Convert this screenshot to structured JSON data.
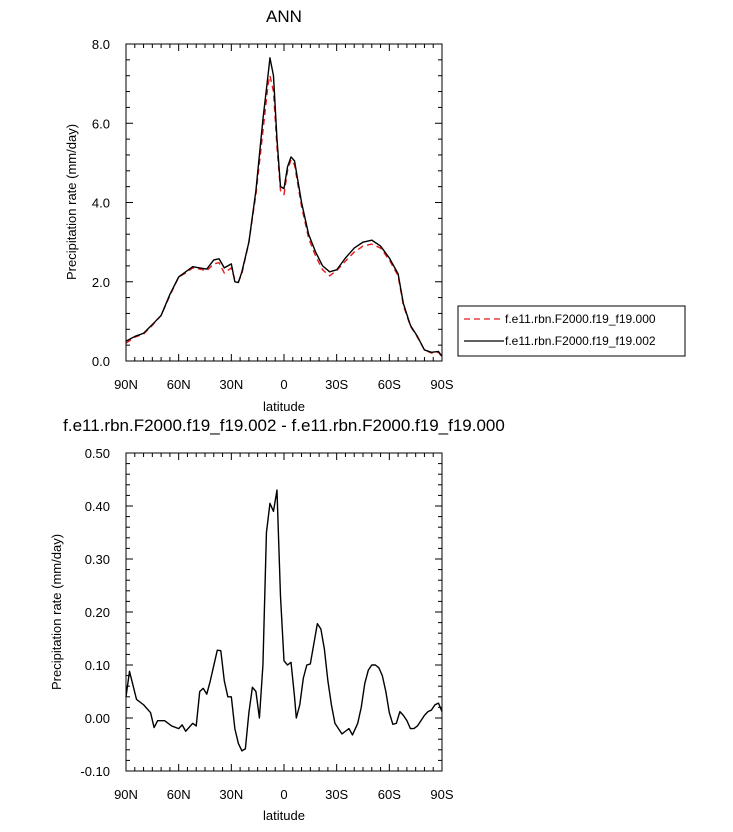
{
  "chart_data": [
    {
      "type": "line",
      "title": "ANN",
      "xlabel": "latitude",
      "ylabel": "Precipitation rate (mm/day)",
      "xlim": [
        90,
        -90
      ],
      "ylim": [
        0,
        8
      ],
      "x_ticks": [
        90,
        60,
        30,
        0,
        -30,
        -60,
        -90
      ],
      "x_tick_labels": [
        "90N",
        "60N",
        "30N",
        "0",
        "30S",
        "60S",
        "90S"
      ],
      "y_ticks": [
        0,
        2,
        4,
        6,
        8
      ],
      "y_tick_labels": [
        "0.0",
        "2.0",
        "4.0",
        "6.0",
        "8.0"
      ],
      "grid": false,
      "legend": "right",
      "series": [
        {
          "name": "f.e11.rbn.F2000.f19_f19.000",
          "color": "#e41a1c",
          "style": "dashed",
          "points": [
            [
              90,
              0.45
            ],
            [
              85,
              0.6
            ],
            [
              80,
              0.68
            ],
            [
              75,
              0.9
            ],
            [
              70,
              1.15
            ],
            [
              65,
              1.65
            ],
            [
              60,
              2.12
            ],
            [
              56,
              2.22
            ],
            [
              52,
              2.35
            ],
            [
              48,
              2.32
            ],
            [
              44,
              2.28
            ],
            [
              40,
              2.45
            ],
            [
              37,
              2.48
            ],
            [
              34,
              2.22
            ],
            [
              30,
              2.35
            ],
            [
              28,
              2.05
            ],
            [
              26,
              2.0
            ],
            [
              24,
              2.2
            ],
            [
              20,
              3.0
            ],
            [
              16,
              4.2
            ],
            [
              12,
              5.8
            ],
            [
              9,
              7.0
            ],
            [
              8,
              7.2
            ],
            [
              6,
              6.8
            ],
            [
              4,
              5.4
            ],
            [
              2,
              4.3
            ],
            [
              0,
              4.2
            ],
            [
              -2,
              4.8
            ],
            [
              -4,
              5.08
            ],
            [
              -6,
              4.95
            ],
            [
              -10,
              3.9
            ],
            [
              -14,
              3.1
            ],
            [
              -18,
              2.65
            ],
            [
              -22,
              2.3
            ],
            [
              -26,
              2.15
            ],
            [
              -30,
              2.28
            ],
            [
              -35,
              2.52
            ],
            [
              -40,
              2.75
            ],
            [
              -45,
              2.9
            ],
            [
              -50,
              2.95
            ],
            [
              -55,
              2.85
            ],
            [
              -60,
              2.55
            ],
            [
              -65,
              2.15
            ],
            [
              -68,
              1.4
            ],
            [
              -72,
              0.88
            ],
            [
              -76,
              0.6
            ],
            [
              -80,
              0.28
            ],
            [
              -84,
              0.2
            ],
            [
              -88,
              0.22
            ],
            [
              -90,
              0.1
            ]
          ]
        },
        {
          "name": "f.e11.rbn.F2000.f19_f19.002",
          "color": "#000000",
          "style": "solid",
          "points": [
            [
              90,
              0.5
            ],
            [
              85,
              0.62
            ],
            [
              80,
              0.7
            ],
            [
              75,
              0.92
            ],
            [
              70,
              1.15
            ],
            [
              65,
              1.68
            ],
            [
              60,
              2.12
            ],
            [
              56,
              2.25
            ],
            [
              52,
              2.38
            ],
            [
              48,
              2.35
            ],
            [
              44,
              2.32
            ],
            [
              40,
              2.55
            ],
            [
              37,
              2.58
            ],
            [
              34,
              2.35
            ],
            [
              30,
              2.45
            ],
            [
              28,
              2.0
            ],
            [
              26,
              1.98
            ],
            [
              24,
              2.25
            ],
            [
              20,
              3.0
            ],
            [
              16,
              4.3
            ],
            [
              12,
              6.1
            ],
            [
              9,
              7.25
            ],
            [
              8,
              7.65
            ],
            [
              6,
              7.2
            ],
            [
              4,
              5.6
            ],
            [
              2,
              4.4
            ],
            [
              0,
              4.35
            ],
            [
              -2,
              4.9
            ],
            [
              -4,
              5.15
            ],
            [
              -6,
              5.05
            ],
            [
              -10,
              4.0
            ],
            [
              -14,
              3.2
            ],
            [
              -18,
              2.75
            ],
            [
              -22,
              2.4
            ],
            [
              -26,
              2.25
            ],
            [
              -30,
              2.3
            ],
            [
              -35,
              2.6
            ],
            [
              -40,
              2.85
            ],
            [
              -45,
              3.0
            ],
            [
              -50,
              3.05
            ],
            [
              -55,
              2.9
            ],
            [
              -60,
              2.6
            ],
            [
              -65,
              2.2
            ],
            [
              -68,
              1.45
            ],
            [
              -72,
              0.9
            ],
            [
              -76,
              0.62
            ],
            [
              -80,
              0.28
            ],
            [
              -84,
              0.22
            ],
            [
              -88,
              0.24
            ],
            [
              -90,
              0.12
            ]
          ]
        }
      ]
    },
    {
      "type": "line",
      "title": "f.e11.rbn.F2000.f19_f19.002 - f.e11.rbn.F2000.f19_f19.000",
      "xlabel": "latitude",
      "ylabel": "Precipitation rate (mm/day)",
      "xlim": [
        90,
        -90
      ],
      "ylim": [
        -0.1,
        0.5
      ],
      "x_ticks": [
        90,
        60,
        30,
        0,
        -30,
        -60,
        -90
      ],
      "x_tick_labels": [
        "90N",
        "60N",
        "30N",
        "0",
        "30S",
        "60S",
        "90S"
      ],
      "y_ticks": [
        -0.1,
        0,
        0.1,
        0.2,
        0.3,
        0.4,
        0.5
      ],
      "y_tick_labels": [
        "-0.10",
        "0.00",
        "0.10",
        "0.20",
        "0.30",
        "0.40",
        "0.50"
      ],
      "grid": false,
      "series": [
        {
          "color": "#000000",
          "style": "solid",
          "points": [
            [
              90,
              0.04
            ],
            [
              88,
              0.088
            ],
            [
              84,
              0.035
            ],
            [
              80,
              0.025
            ],
            [
              76,
              0.01
            ],
            [
              74,
              -0.018
            ],
            [
              72,
              -0.005
            ],
            [
              68,
              -0.005
            ],
            [
              64,
              -0.015
            ],
            [
              60,
              -0.02
            ],
            [
              58,
              -0.013
            ],
            [
              56,
              -0.025
            ],
            [
              52,
              -0.01
            ],
            [
              50,
              -0.015
            ],
            [
              48,
              0.05
            ],
            [
              46,
              0.056
            ],
            [
              44,
              0.045
            ],
            [
              42,
              0.07
            ],
            [
              38,
              0.128
            ],
            [
              36,
              0.127
            ],
            [
              34,
              0.07
            ],
            [
              32,
              0.04
            ],
            [
              30,
              0.04
            ],
            [
              28,
              -0.02
            ],
            [
              26,
              -0.048
            ],
            [
              24,
              -0.062
            ],
            [
              22,
              -0.058
            ],
            [
              20,
              0.01
            ],
            [
              18,
              0.058
            ],
            [
              16,
              0.05
            ],
            [
              14,
              0.0
            ],
            [
              12,
              0.1
            ],
            [
              10,
              0.35
            ],
            [
              8,
              0.405
            ],
            [
              6,
              0.39
            ],
            [
              4,
              0.43
            ],
            [
              2,
              0.23
            ],
            [
              0,
              0.108
            ],
            [
              -2,
              0.1
            ],
            [
              -4,
              0.105
            ],
            [
              -6,
              0.04
            ],
            [
              -7,
              0.0
            ],
            [
              -9,
              0.025
            ],
            [
              -11,
              0.075
            ],
            [
              -13,
              0.1
            ],
            [
              -15,
              0.102
            ],
            [
              -17,
              0.14
            ],
            [
              -19,
              0.178
            ],
            [
              -21,
              0.168
            ],
            [
              -23,
              0.13
            ],
            [
              -25,
              0.07
            ],
            [
              -27,
              0.025
            ],
            [
              -29,
              -0.01
            ],
            [
              -31,
              -0.02
            ],
            [
              -33,
              -0.03
            ],
            [
              -35,
              -0.025
            ],
            [
              -37,
              -0.02
            ],
            [
              -39,
              -0.032
            ],
            [
              -42,
              -0.01
            ],
            [
              -44,
              0.02
            ],
            [
              -46,
              0.065
            ],
            [
              -48,
              0.09
            ],
            [
              -50,
              0.1
            ],
            [
              -52,
              0.1
            ],
            [
              -54,
              0.095
            ],
            [
              -56,
              0.08
            ],
            [
              -58,
              0.05
            ],
            [
              -60,
              0.01
            ],
            [
              -62,
              -0.012
            ],
            [
              -64,
              -0.01
            ],
            [
              -66,
              0.012
            ],
            [
              -68,
              0.005
            ],
            [
              -70,
              -0.005
            ],
            [
              -72,
              -0.02
            ],
            [
              -74,
              -0.02
            ],
            [
              -76,
              -0.015
            ],
            [
              -80,
              0.005
            ],
            [
              -82,
              0.012
            ],
            [
              -84,
              0.015
            ],
            [
              -86,
              0.025
            ],
            [
              -88,
              0.028
            ],
            [
              -90,
              0.012
            ]
          ]
        }
      ]
    }
  ]
}
